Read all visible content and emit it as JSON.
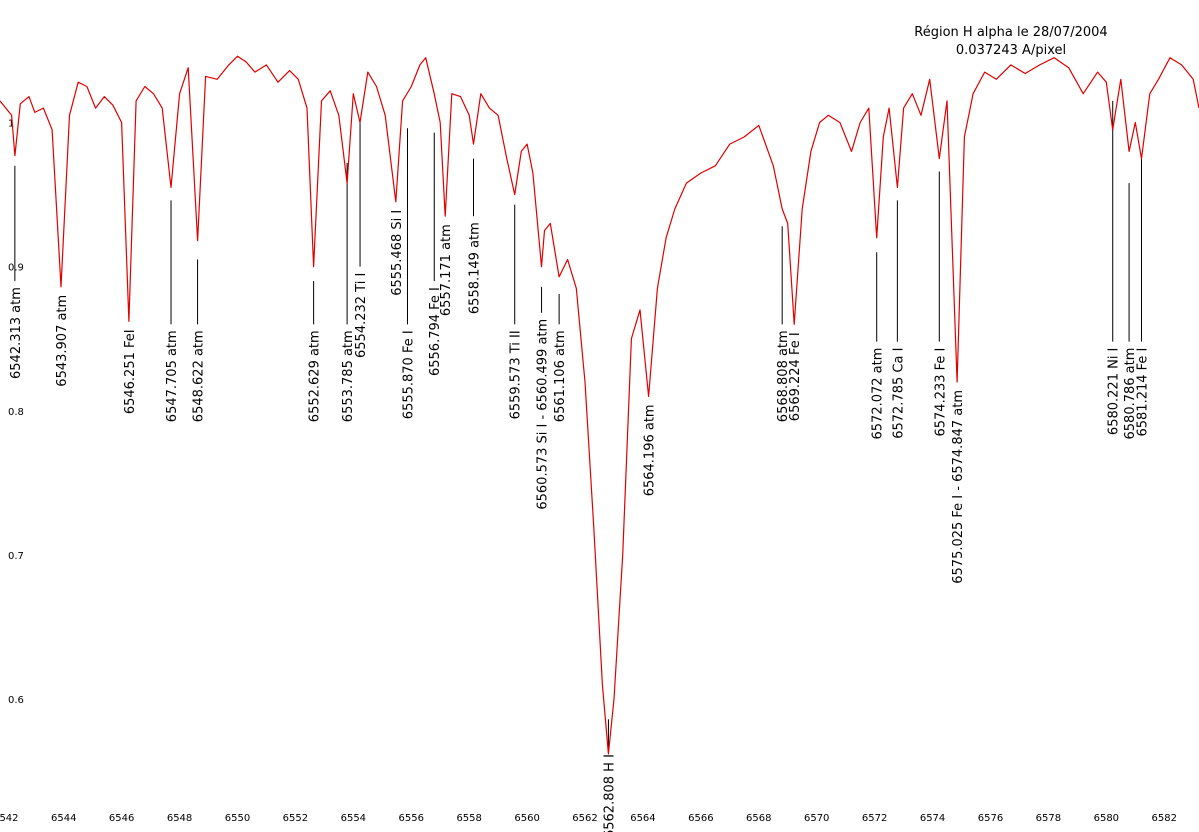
{
  "chart_data": {
    "type": "line",
    "title": "Région H alpha le 28/07/2004",
    "subtitle": "0.037243 A/pixel",
    "xlabel": "",
    "ylabel": "",
    "xlim": [
      6541.8,
      6583.2
    ],
    "ylim": [
      0.53,
      1.085
    ],
    "x_ticks": [
      "6542",
      "6544",
      "6546",
      "6548",
      "6550",
      "6552",
      "6554",
      "6556",
      "6558",
      "6560",
      "6562",
      "6564",
      "6566",
      "6568",
      "6570",
      "6572",
      "6574",
      "6576",
      "6578",
      "6580",
      "6582"
    ],
    "y_ticks": [
      "1",
      "0.9",
      "0.8",
      "0.7",
      "0.6"
    ],
    "grid": false,
    "series": [
      {
        "color": "#e00000",
        "x": [
          6541.8,
          6542.0,
          6542.2,
          6542.313,
          6542.5,
          6542.8,
          6543.0,
          6543.3,
          6543.6,
          6543.907,
          6544.2,
          6544.5,
          6544.8,
          6545.1,
          6545.4,
          6545.7,
          6546.0,
          6546.251,
          6546.5,
          6546.8,
          6547.1,
          6547.4,
          6547.705,
          6548.0,
          6548.3,
          6548.622,
          6548.9,
          6549.3,
          6549.7,
          6550.0,
          6550.3,
          6550.6,
          6551.0,
          6551.4,
          6551.8,
          6552.1,
          6552.4,
          6552.629,
          6552.9,
          6553.2,
          6553.5,
          6553.785,
          6554.0,
          6554.232,
          6554.5,
          6554.8,
          6555.1,
          6555.468,
          6555.7,
          6556.0,
          6556.3,
          6556.5,
          6556.794,
          6557.0,
          6557.171,
          6557.4,
          6557.7,
          6558.0,
          6558.149,
          6558.4,
          6558.7,
          6559.0,
          6559.3,
          6559.573,
          6559.8,
          6560.0,
          6560.2,
          6560.499,
          6560.6,
          6560.8,
          6561.106,
          6561.4,
          6561.7,
          6562.0,
          6562.3,
          6562.6,
          6562.808,
          6563.0,
          6563.3,
          6563.6,
          6563.9,
          6564.196,
          6564.5,
          6564.8,
          6565.1,
          6565.5,
          6566.0,
          6566.5,
          6567.0,
          6567.5,
          6568.0,
          6568.5,
          6568.808,
          6569.0,
          6569.224,
          6569.5,
          6569.8,
          6570.1,
          6570.4,
          6570.8,
          6571.2,
          6571.5,
          6571.8,
          6572.072,
          6572.3,
          6572.5,
          6572.785,
          6573.0,
          6573.3,
          6573.6,
          6573.9,
          6574.233,
          6574.5,
          6574.847,
          6575.1,
          6575.4,
          6575.8,
          6576.2,
          6576.7,
          6577.2,
          6577.7,
          6578.2,
          6578.7,
          6579.2,
          6579.7,
          6580.0,
          6580.221,
          6580.5,
          6580.786,
          6581.0,
          6581.214,
          6581.5,
          6581.8,
          6582.2,
          6582.6,
          6583.0,
          6583.2
        ],
        "y": [
          1.015,
          1.01,
          1.005,
          0.977,
          1.013,
          1.018,
          1.007,
          1.01,
          0.995,
          0.886,
          1.005,
          1.028,
          1.025,
          1.01,
          1.018,
          1.012,
          1.0,
          0.862,
          1.015,
          1.025,
          1.02,
          1.01,
          0.955,
          1.02,
          1.038,
          0.918,
          1.032,
          1.03,
          1.04,
          1.046,
          1.042,
          1.035,
          1.04,
          1.028,
          1.036,
          1.03,
          1.01,
          0.9,
          1.015,
          1.022,
          1.005,
          0.958,
          1.02,
          1.0,
          1.035,
          1.025,
          1.005,
          0.945,
          1.015,
          1.025,
          1.04,
          1.045,
          1.02,
          1.0,
          0.935,
          1.02,
          1.018,
          1.005,
          0.985,
          1.02,
          1.01,
          1.005,
          0.975,
          0.95,
          0.98,
          0.985,
          0.965,
          0.9,
          0.925,
          0.93,
          0.893,
          0.905,
          0.885,
          0.82,
          0.72,
          0.61,
          0.562,
          0.6,
          0.7,
          0.85,
          0.87,
          0.81,
          0.885,
          0.92,
          0.94,
          0.958,
          0.965,
          0.97,
          0.985,
          0.99,
          0.998,
          0.97,
          0.94,
          0.93,
          0.86,
          0.94,
          0.98,
          1.0,
          1.005,
          1.0,
          0.98,
          1.0,
          1.01,
          0.92,
          0.99,
          1.01,
          0.955,
          1.01,
          1.02,
          1.005,
          1.03,
          0.975,
          1.015,
          0.82,
          0.99,
          1.02,
          1.035,
          1.03,
          1.04,
          1.034,
          1.04,
          1.045,
          1.038,
          1.02,
          1.035,
          1.028,
          0.995,
          1.03,
          0.98,
          1.0,
          0.975,
          1.02,
          1.03,
          1.045,
          1.04,
          1.03,
          1.01
        ]
      }
    ],
    "annotations": [
      {
        "label": "6542.313 atm",
        "x": 6542.313,
        "y_top": 0.97,
        "y_bottom": 0.89
      },
      {
        "label": "6543.907 atm",
        "x": 6543.907,
        "y_top": null,
        "y_bottom": null
      },
      {
        "label": "6546.251 FeI",
        "x": 6546.251,
        "y_top": null,
        "y_bottom": null
      },
      {
        "label": "6547.705 atm",
        "x": 6547.705,
        "y_top": 0.946,
        "y_bottom": 0.86
      },
      {
        "label": "6548.622 atm",
        "x": 6548.622,
        "y_top": 0.905,
        "y_bottom": 0.86
      },
      {
        "label": "6552.629 atm",
        "x": 6552.629,
        "y_top": 0.89,
        "y_bottom": 0.86
      },
      {
        "label": "6553.785 atm",
        "x": 6553.785,
        "y_top": 0.972,
        "y_bottom": 0.86
      },
      {
        "label": "6554.232 Ti I",
        "x": 6554.232,
        "y_top": 1.0,
        "y_bottom": 0.9
      },
      {
        "label": "6555.468 Si I",
        "x": 6555.468,
        "y_top": null,
        "y_bottom": null
      },
      {
        "label": "6555.870 Fe I",
        "x": 6555.87,
        "y_top": 0.996,
        "y_bottom": 0.86
      },
      {
        "label": "6556.794 Fe I",
        "x": 6556.794,
        "y_top": 0.993,
        "y_bottom": 0.89
      },
      {
        "label": "6557.171 atm",
        "x": 6557.171,
        "y_top": null,
        "y_bottom": null
      },
      {
        "label": "6558.149 atm",
        "x": 6558.149,
        "y_top": 0.975,
        "y_bottom": 0.935
      },
      {
        "label": "6559.573 Ti II",
        "x": 6559.573,
        "y_top": 0.943,
        "y_bottom": 0.86
      },
      {
        "label": "6560.573 Si I - 6560.499 atm",
        "x": 6560.499,
        "y_top": 0.886,
        "y_bottom": 0.868
      },
      {
        "label": "6561.106 atm",
        "x": 6561.106,
        "y_top": 0.881,
        "y_bottom": 0.86
      },
      {
        "label": "6562.808 H I",
        "x": 6562.808,
        "y_top": 0.586,
        "y_bottom": 0.566
      },
      {
        "label": "6564.196 atm",
        "x": 6564.196,
        "y_top": null,
        "y_bottom": null
      },
      {
        "label": "6568.808 atm",
        "x": 6568.808,
        "y_top": 0.928,
        "y_bottom": 0.86
      },
      {
        "label": "6569.224 Fe I",
        "x": 6569.224,
        "y_top": null,
        "y_bottom": null
      },
      {
        "label": "6572.072 atm",
        "x": 6572.072,
        "y_top": 0.91,
        "y_bottom": 0.848
      },
      {
        "label": "6572.785 Ca I",
        "x": 6572.785,
        "y_top": 0.946,
        "y_bottom": 0.848
      },
      {
        "label": "6574.233 Fe I",
        "x": 6574.233,
        "y_top": 0.966,
        "y_bottom": 0.848
      },
      {
        "label": "6575.025 Fe I - 6574.847 atm",
        "x": 6574.847,
        "y_top": null,
        "y_bottom": null
      },
      {
        "label": "6580.221 Ni I",
        "x": 6580.221,
        "y_top": 1.015,
        "y_bottom": 0.848
      },
      {
        "label": "6580.786 atm",
        "x": 6580.786,
        "y_top": 0.958,
        "y_bottom": 0.848
      },
      {
        "label": "6581.214 Fe I",
        "x": 6581.214,
        "y_top": 0.976,
        "y_bottom": 0.848
      }
    ],
    "legend": "none"
  }
}
